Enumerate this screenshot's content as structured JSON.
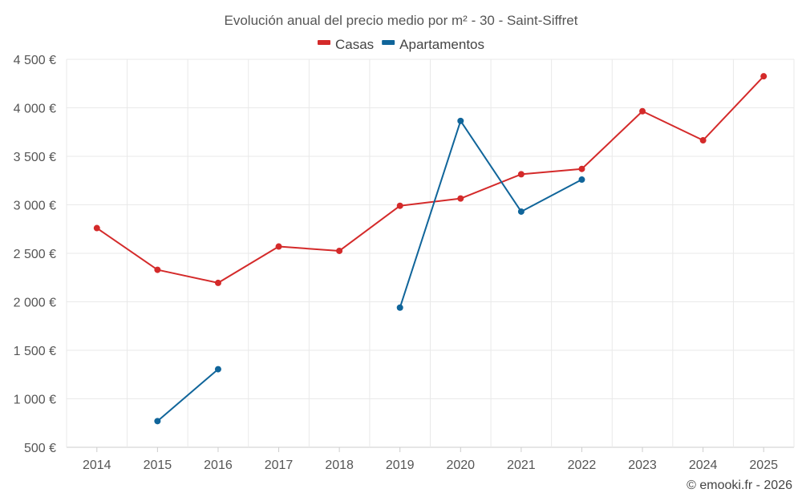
{
  "chart_data": {
    "type": "line",
    "title": "Evolución anual del precio medio por m² - 30 - Saint-Siffret",
    "categories": [
      "2014",
      "2015",
      "2016",
      "2017",
      "2018",
      "2019",
      "2020",
      "2021",
      "2022",
      "2023",
      "2024",
      "2025"
    ],
    "series": [
      {
        "name": "Casas",
        "color": "#d42a2a",
        "values": [
          2760,
          2330,
          2195,
          2570,
          2525,
          2990,
          3065,
          3315,
          3370,
          3965,
          3665,
          4325
        ]
      },
      {
        "name": "Apartamentos",
        "color": "#10659a",
        "values": [
          null,
          770,
          1305,
          null,
          null,
          1940,
          3865,
          2930,
          3260,
          null,
          null,
          null
        ]
      }
    ],
    "ylim": [
      500,
      4500
    ],
    "yticks": [
      500,
      1000,
      1500,
      2000,
      2500,
      3000,
      3500,
      4000,
      4500
    ],
    "ytick_labels": [
      "500 €",
      "1 000 €",
      "1 500 €",
      "2 000 €",
      "2 500 €",
      "3 000 €",
      "3 500 €",
      "4 000 €",
      "4 500 €"
    ],
    "xlabel": "",
    "ylabel": "",
    "legend_position": "top-center",
    "grid": true
  },
  "credit": "© emooki.fr - 2026"
}
